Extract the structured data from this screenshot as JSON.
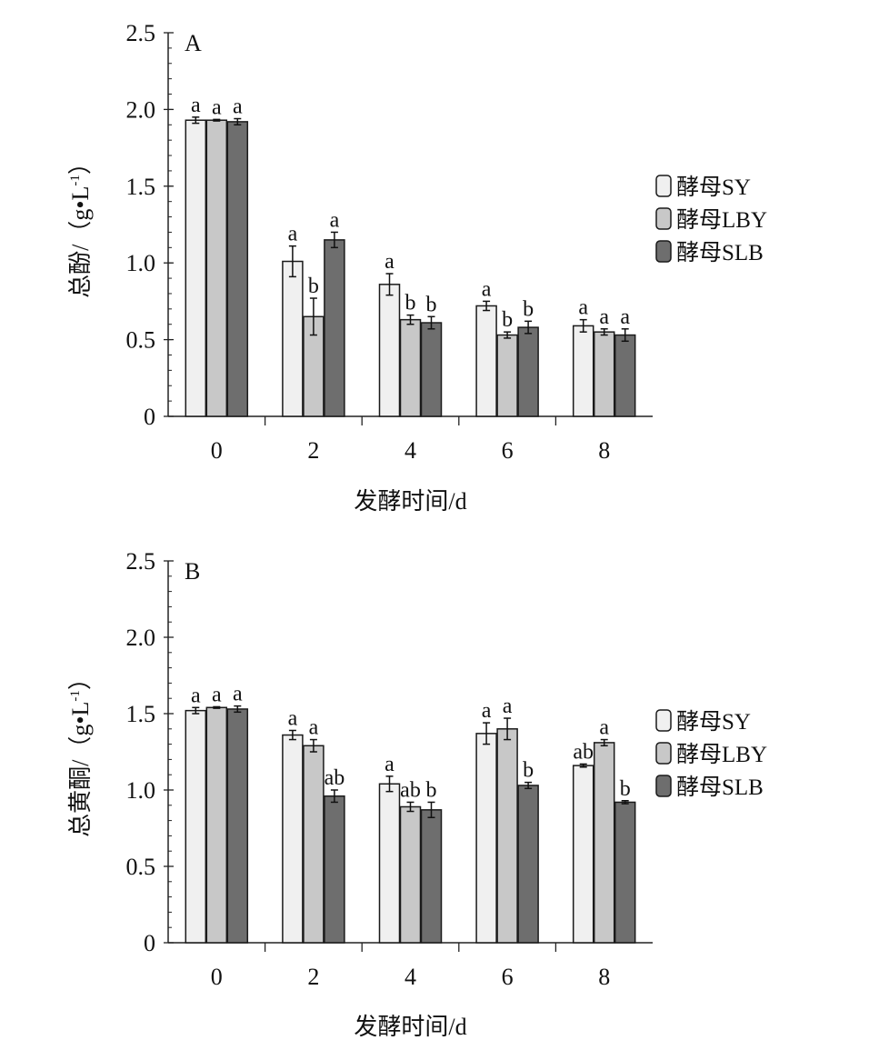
{
  "colors": {
    "SY": "#f0f0f0",
    "LBY": "#c8c8c8",
    "SLB": "#6e6e6e",
    "stroke": "#1a1a1a"
  },
  "chart_data": [
    {
      "type": "bar",
      "panel_label": "A",
      "ylabel": "总酚/（g•L-1）",
      "ylabel_main": "总酚/（g•L",
      "ylabel_sup": "-1",
      "ylabel_end": "）",
      "xlabel": "发酵时间/d",
      "ylim": [
        0,
        2.5
      ],
      "yticks": [
        "0",
        "0.5",
        "1.0",
        "1.5",
        "2.0",
        "2.5"
      ],
      "categories": [
        "0",
        "2",
        "4",
        "6",
        "8"
      ],
      "legend_position": "right",
      "series": [
        {
          "name": "酵母SY",
          "key": "SY",
          "values": [
            1.93,
            1.01,
            0.86,
            0.72,
            0.59
          ],
          "errors": [
            0.02,
            0.1,
            0.07,
            0.03,
            0.04
          ],
          "letters": [
            "a",
            "a",
            "a",
            "a",
            "a"
          ]
        },
        {
          "name": "酵母LBY",
          "key": "LBY",
          "values": [
            1.93,
            0.65,
            0.63,
            0.53,
            0.55
          ],
          "errors": [
            0.005,
            0.12,
            0.03,
            0.02,
            0.02
          ],
          "letters": [
            "a",
            "b",
            "b",
            "b",
            "a"
          ]
        },
        {
          "name": "酵母SLB",
          "key": "SLB",
          "values": [
            1.92,
            1.15,
            0.61,
            0.58,
            0.53
          ],
          "errors": [
            0.02,
            0.05,
            0.04,
            0.04,
            0.04
          ],
          "letters": [
            "a",
            "a",
            "b",
            "b",
            "a"
          ]
        }
      ]
    },
    {
      "type": "bar",
      "panel_label": "B",
      "ylabel": "总黄酮/（g•L-1）",
      "ylabel_main": "总黄酮/（g•L",
      "ylabel_sup": "-1",
      "ylabel_end": "）",
      "xlabel": "发酵时间/d",
      "ylim": [
        0,
        2.5
      ],
      "yticks": [
        "0",
        "0.5",
        "1.0",
        "1.5",
        "2.0",
        "2.5"
      ],
      "categories": [
        "0",
        "2",
        "4",
        "6",
        "8"
      ],
      "legend_position": "right",
      "series": [
        {
          "name": "酵母SY",
          "key": "SY",
          "values": [
            1.52,
            1.36,
            1.04,
            1.37,
            1.16
          ],
          "errors": [
            0.02,
            0.03,
            0.05,
            0.07,
            0.01
          ],
          "letters": [
            "a",
            "a",
            "a",
            "a",
            "ab"
          ]
        },
        {
          "name": "酵母LBY",
          "key": "LBY",
          "values": [
            1.54,
            1.29,
            0.89,
            1.4,
            1.31
          ],
          "errors": [
            0.005,
            0.04,
            0.03,
            0.07,
            0.02
          ],
          "letters": [
            "a",
            "a",
            "ab",
            "a",
            "a"
          ]
        },
        {
          "name": "酵母SLB",
          "key": "SLB",
          "values": [
            1.53,
            0.96,
            0.87,
            1.03,
            0.92
          ],
          "errors": [
            0.02,
            0.04,
            0.05,
            0.02,
            0.01
          ],
          "letters": [
            "a",
            "ab",
            "b",
            "b",
            "b"
          ]
        }
      ]
    }
  ]
}
